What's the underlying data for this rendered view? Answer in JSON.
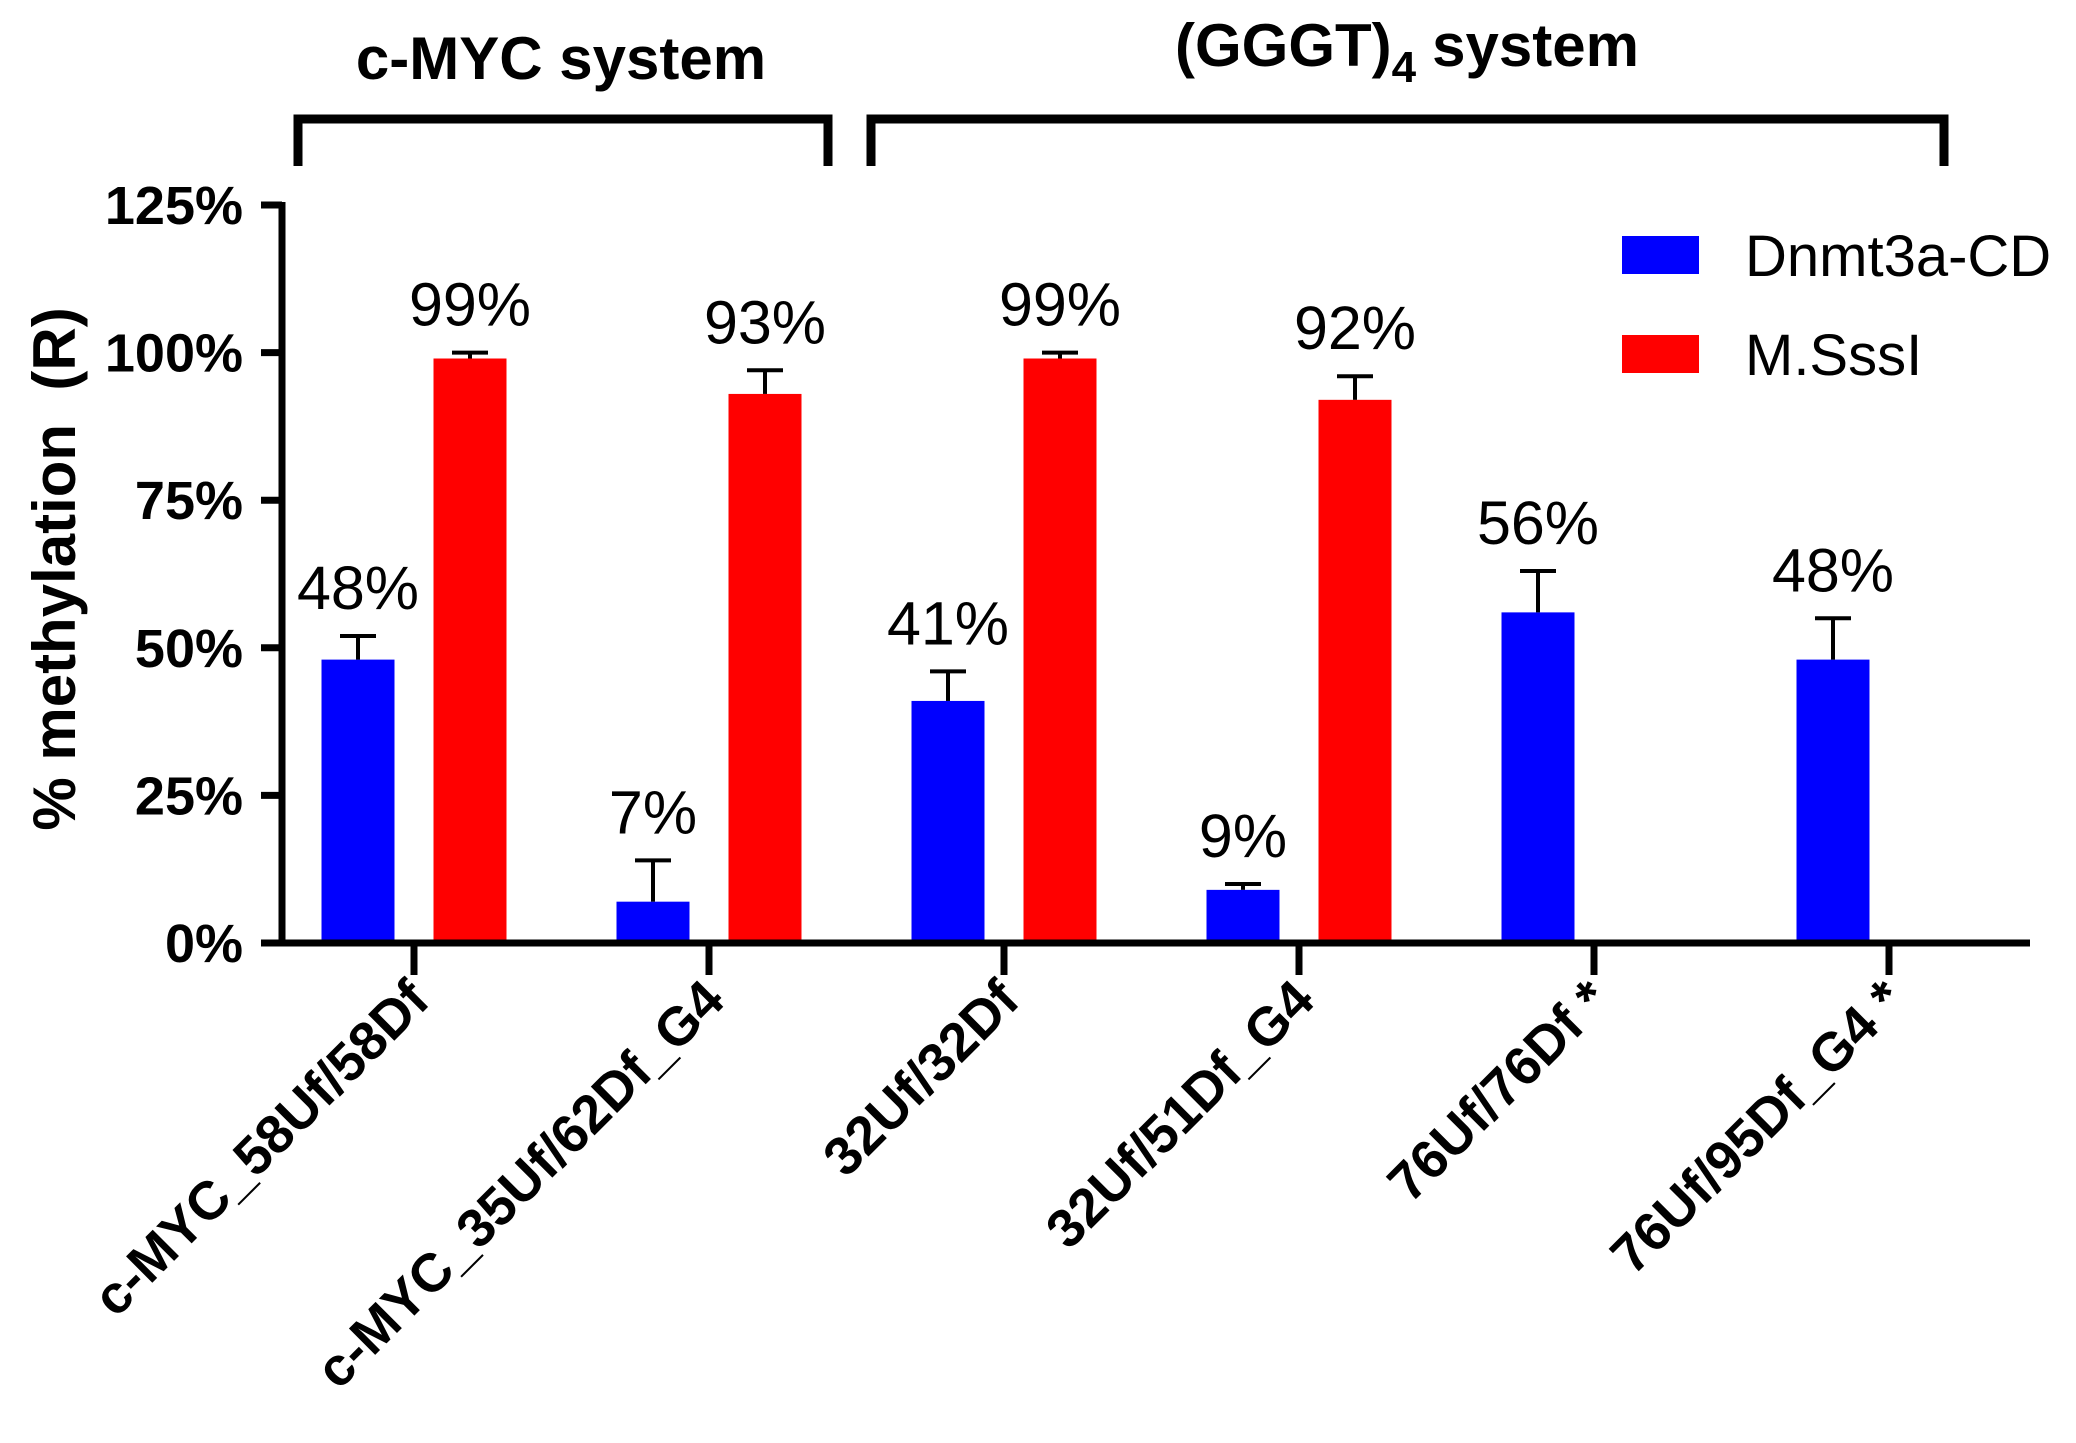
{
  "chart_data": {
    "type": "bar",
    "categories": [
      "c-MYC_58Uf/58Df",
      "c-MYC_35Uf/62Df_G4",
      "32Uf/32Df",
      "32Uf/51Df_G4",
      "76Uf/76Df *",
      "76Uf/95Df_G4 *"
    ],
    "series": [
      {
        "name": "Dnmt3a-CD",
        "color": "#0000FF",
        "values": [
          48,
          7,
          41,
          9,
          56,
          48
        ],
        "errors": [
          4,
          7,
          5,
          1,
          7,
          7
        ],
        "data_labels": [
          "48%",
          "7%",
          "41%",
          "9%",
          "56%",
          "48%"
        ]
      },
      {
        "name": "M.SssI",
        "color": "#FF0000",
        "values": [
          99,
          93,
          99,
          92,
          null,
          null
        ],
        "errors": [
          1,
          4,
          1,
          4,
          null,
          null
        ],
        "data_labels": [
          "99%",
          "93%",
          "99%",
          "92%",
          null,
          null
        ]
      }
    ],
    "ylabel": "% methylation  (R)",
    "ylim": [
      0,
      125
    ],
    "yticks": [
      0,
      25,
      50,
      75,
      100,
      125
    ],
    "ytick_labels": [
      "0%",
      "25%",
      "50%",
      "75%",
      "100%",
      "125%"
    ],
    "groups": [
      {
        "title": "c-MYC system",
        "categories": [
          0,
          1
        ]
      },
      {
        "title": "(GGGT)",
        "title_subscript": "4",
        "title_suffix": "system",
        "categories": [
          2,
          5
        ]
      }
    ]
  }
}
